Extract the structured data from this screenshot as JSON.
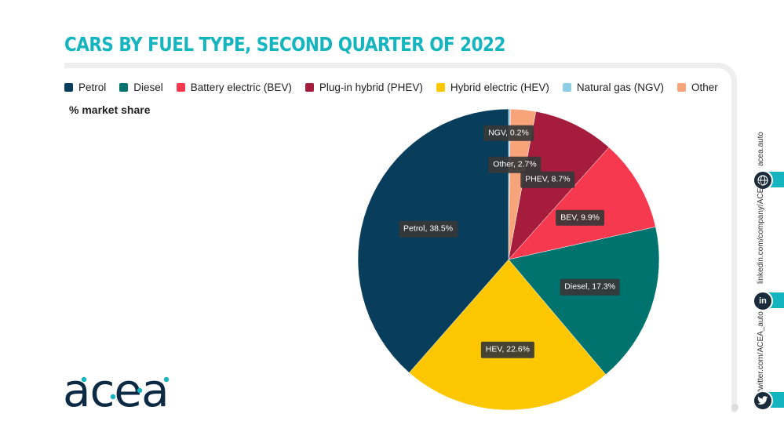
{
  "title": "CARS BY FUEL TYPE, SECOND QUARTER OF 2022",
  "ylabel": "% market share",
  "brand": "acea",
  "social": {
    "web": "acea.auto",
    "linkedin": "linkedin.com/company/ACEA/",
    "twitter": "twitter.com/ACEA_auto",
    "linkedin_icon_text": "in"
  },
  "colors": {
    "accent": "#14b5bf",
    "navy": "#1a2b3c"
  },
  "legend": [
    {
      "label": "Petrol",
      "color": "#083d5c"
    },
    {
      "label": "Diesel",
      "color": "#00736e"
    },
    {
      "label": "Battery electric (BEV)",
      "color": "#f7394f"
    },
    {
      "label": "Plug-in hybrid (PHEV)",
      "color": "#a51c3d"
    },
    {
      "label": "Hybrid electric (HEV)",
      "color": "#fdc700"
    },
    {
      "label": "Natural gas (NGV)",
      "color": "#8dcdea"
    },
    {
      "label": "Other",
      "color": "#f8a47a"
    }
  ],
  "chart_data": {
    "type": "pie",
    "title": "CARS BY FUEL TYPE, SECOND QUARTER OF 2022",
    "ylabel": "% market share",
    "legend_position": "top",
    "slices": [
      {
        "name": "NGV",
        "value": 0.2,
        "label": "NGV, 0.2%",
        "color": "#8dcdea"
      },
      {
        "name": "Other",
        "value": 2.7,
        "label": "Other, 2.7%",
        "color": "#f8a47a"
      },
      {
        "name": "PHEV",
        "value": 8.7,
        "label": "PHEV, 8.7%",
        "color": "#a51c3d"
      },
      {
        "name": "BEV",
        "value": 9.9,
        "label": "BEV, 9.9%",
        "color": "#f7394f"
      },
      {
        "name": "Diesel",
        "value": 17.3,
        "label": "Diesel, 17.3%",
        "color": "#00736e"
      },
      {
        "name": "HEV",
        "value": 22.6,
        "label": "HEV, 22.6%",
        "color": "#fdc700"
      },
      {
        "name": "Petrol",
        "value": 38.5,
        "label": "Petrol, 38.5%",
        "color": "#083d5c"
      }
    ]
  }
}
